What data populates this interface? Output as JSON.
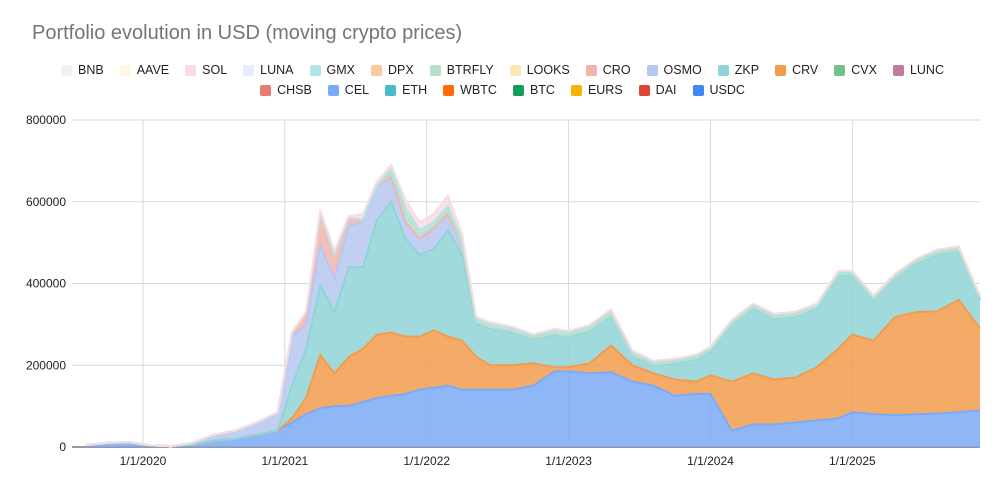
{
  "chart_data": {
    "type": "area",
    "stacked": true,
    "title": "Portfolio evolution in USD (moving crypto prices)",
    "legend_position": "top",
    "grid": true,
    "x_ticks": [
      "1/1/2020",
      "1/1/2021",
      "1/1/2022",
      "1/1/2023",
      "1/1/2024",
      "1/1/2025"
    ],
    "y_ticks": [
      0,
      200000,
      400000,
      600000,
      800000
    ],
    "ylim": [
      0,
      800000
    ],
    "xlim": [
      2019.5,
      2025.9
    ],
    "x": [
      2019.6,
      2019.75,
      2019.9,
      2020.05,
      2020.2,
      2020.35,
      2020.5,
      2020.65,
      2020.8,
      2020.95,
      2021.05,
      2021.15,
      2021.25,
      2021.35,
      2021.45,
      2021.55,
      2021.65,
      2021.75,
      2021.85,
      2021.95,
      2022.05,
      2022.15,
      2022.25,
      2022.35,
      2022.45,
      2022.6,
      2022.75,
      2022.9,
      2023.0,
      2023.15,
      2023.3,
      2023.45,
      2023.6,
      2023.75,
      2023.9,
      2024.0,
      2024.15,
      2024.3,
      2024.45,
      2024.6,
      2024.75,
      2024.9,
      2025.0,
      2025.15,
      2025.3,
      2025.45,
      2025.6,
      2025.75,
      2025.9
    ],
    "series": [
      {
        "name": "USDC",
        "color": "#4285f4",
        "values": [
          0,
          0,
          0,
          0,
          0,
          0,
          0,
          0,
          0,
          0,
          0,
          0,
          0,
          0,
          0,
          0,
          0,
          0,
          0,
          0,
          0,
          0,
          0,
          0,
          0,
          0,
          0,
          0,
          0,
          0,
          0,
          0,
          0,
          0,
          0,
          0,
          0,
          0,
          0,
          0,
          0,
          0,
          0,
          0,
          0,
          0,
          0,
          0,
          0
        ]
      },
      {
        "name": "DAI",
        "color": "#db4437",
        "values": [
          0,
          0,
          0,
          0,
          0,
          0,
          0,
          0,
          0,
          0,
          0,
          0,
          0,
          0,
          0,
          0,
          0,
          0,
          0,
          0,
          0,
          0,
          0,
          0,
          0,
          0,
          0,
          0,
          0,
          0,
          0,
          0,
          0,
          0,
          0,
          0,
          0,
          0,
          0,
          0,
          0,
          0,
          0,
          0,
          0,
          0,
          0,
          0,
          0
        ]
      },
      {
        "name": "EURS",
        "color": "#f4b400",
        "values": [
          0,
          0,
          0,
          0,
          0,
          0,
          0,
          0,
          0,
          0,
          0,
          0,
          0,
          0,
          0,
          0,
          0,
          0,
          0,
          0,
          0,
          0,
          0,
          0,
          0,
          0,
          0,
          0,
          0,
          0,
          0,
          0,
          0,
          0,
          0,
          0,
          0,
          0,
          0,
          0,
          0,
          0,
          0,
          0,
          0,
          0,
          0,
          0,
          0
        ]
      },
      {
        "name": "BTC",
        "color": "#0f9d58",
        "values": [
          0,
          0,
          0,
          0,
          0,
          0,
          0,
          0,
          0,
          0,
          0,
          0,
          0,
          0,
          0,
          0,
          0,
          0,
          0,
          0,
          0,
          0,
          0,
          0,
          0,
          0,
          0,
          0,
          0,
          0,
          0,
          0,
          0,
          0,
          0,
          0,
          0,
          0,
          0,
          0,
          0,
          0,
          0,
          0,
          0,
          0,
          0,
          0,
          0
        ]
      },
      {
        "name": "WBTC",
        "color": "#ff6d00",
        "values": [
          0,
          0,
          0,
          0,
          0,
          0,
          0,
          0,
          0,
          0,
          0,
          0,
          0,
          0,
          0,
          0,
          0,
          0,
          0,
          0,
          0,
          0,
          0,
          0,
          0,
          0,
          0,
          0,
          0,
          0,
          0,
          0,
          0,
          0,
          0,
          0,
          0,
          0,
          0,
          0,
          0,
          0,
          0,
          0,
          0,
          0,
          0,
          0,
          0
        ]
      },
      {
        "name": "ETH",
        "color": "#46bdc6",
        "values": [
          0,
          0,
          0,
          0,
          0,
          0,
          0,
          0,
          0,
          0,
          0,
          0,
          0,
          0,
          0,
          0,
          0,
          0,
          0,
          0,
          0,
          0,
          0,
          0,
          0,
          0,
          0,
          0,
          0,
          0,
          0,
          0,
          0,
          0,
          0,
          0,
          0,
          0,
          0,
          0,
          0,
          0,
          0,
          0,
          0,
          0,
          0,
          0,
          0
        ]
      },
      {
        "name": "CEL",
        "color": "#7baaf7",
        "values": [
          5000,
          10000,
          12000,
          4000,
          2000,
          5000,
          15000,
          20000,
          30000,
          40000,
          60000,
          80000,
          95000,
          100000,
          100000,
          110000,
          120000,
          125000,
          130000,
          140000,
          145000,
          150000,
          140000,
          140000,
          140000,
          140000,
          150000,
          185000,
          185000,
          180000,
          183000,
          160000,
          150000,
          125000,
          130000,
          130000,
          40000,
          55000,
          55000,
          60000,
          65000,
          70000,
          85000,
          80000,
          78000,
          80000,
          82000,
          85000,
          90000
        ]
      },
      {
        "name": "CHSB",
        "color": "#e67c73",
        "values": [
          0,
          0,
          0,
          0,
          0,
          0,
          0,
          0,
          0,
          0,
          0,
          0,
          0,
          0,
          0,
          0,
          0,
          0,
          0,
          0,
          0,
          0,
          0,
          0,
          0,
          0,
          0,
          0,
          0,
          0,
          0,
          0,
          0,
          0,
          0,
          0,
          0,
          0,
          0,
          0,
          0,
          0,
          0,
          0,
          0,
          0,
          0,
          0,
          0
        ]
      },
      {
        "name": "LUNC",
        "color": "#c27ba0",
        "values": [
          0,
          0,
          0,
          0,
          0,
          0,
          0,
          0,
          0,
          0,
          0,
          0,
          0,
          0,
          0,
          0,
          0,
          0,
          0,
          0,
          0,
          0,
          0,
          0,
          0,
          0,
          0,
          0,
          0,
          0,
          0,
          0,
          0,
          0,
          0,
          0,
          0,
          0,
          0,
          0,
          0,
          0,
          0,
          0,
          0,
          0,
          0,
          0,
          0
        ]
      },
      {
        "name": "CVX",
        "color": "#71c287",
        "values": [
          0,
          0,
          0,
          0,
          0,
          0,
          0,
          0,
          0,
          0,
          0,
          0,
          0,
          0,
          0,
          0,
          0,
          0,
          0,
          0,
          0,
          0,
          0,
          0,
          0,
          0,
          0,
          0,
          0,
          0,
          0,
          0,
          0,
          0,
          0,
          0,
          0,
          0,
          0,
          0,
          0,
          0,
          0,
          0,
          0,
          0,
          0,
          0,
          0
        ]
      },
      {
        "name": "CRV",
        "color": "#f39c4d",
        "values": [
          0,
          0,
          0,
          0,
          0,
          0,
          0,
          0,
          0,
          0,
          10000,
          40000,
          130000,
          80000,
          120000,
          130000,
          155000,
          155000,
          140000,
          130000,
          140000,
          120000,
          120000,
          80000,
          60000,
          60000,
          55000,
          10000,
          10000,
          25000,
          65000,
          40000,
          30000,
          40000,
          30000,
          45000,
          120000,
          125000,
          110000,
          110000,
          130000,
          170000,
          190000,
          180000,
          240000,
          250000,
          250000,
          275000,
          200000
        ]
      },
      {
        "name": "ZKP",
        "color": "#8fd4d6",
        "values": [
          0,
          0,
          0,
          0,
          0,
          0,
          0,
          0,
          0,
          0,
          80000,
          120000,
          170000,
          150000,
          220000,
          200000,
          280000,
          320000,
          240000,
          200000,
          200000,
          260000,
          210000,
          80000,
          90000,
          80000,
          60000,
          80000,
          75000,
          80000,
          75000,
          25000,
          20000,
          40000,
          55000,
          60000,
          140000,
          160000,
          150000,
          150000,
          145000,
          180000,
          145000,
          100000,
          95000,
          120000,
          140000,
          120000,
          70000
        ]
      },
      {
        "name": "OSMO",
        "color": "#b6c8f0",
        "values": [
          0,
          0,
          0,
          0,
          0,
          5000,
          15000,
          20000,
          30000,
          45000,
          120000,
          60000,
          100000,
          80000,
          100000,
          110000,
          85000,
          60000,
          40000,
          40000,
          50000,
          40000,
          20000,
          5000,
          3000,
          3000,
          2000,
          2000,
          2000,
          2000,
          2000,
          2000,
          2000,
          2000,
          2000,
          2000,
          2000,
          2000,
          2000,
          2000,
          2000,
          2000,
          2000,
          2000,
          2000,
          2000,
          2000,
          2000,
          2000
        ]
      },
      {
        "name": "CRO",
        "color": "#f4b3ad",
        "values": [
          0,
          0,
          0,
          0,
          0,
          0,
          0,
          0,
          0,
          0,
          10000,
          30000,
          75000,
          60000,
          20000,
          5000,
          0,
          0,
          0,
          0,
          0,
          0,
          0,
          0,
          0,
          0,
          0,
          0,
          0,
          0,
          0,
          0,
          0,
          0,
          0,
          0,
          0,
          0,
          0,
          0,
          0,
          0,
          0,
          0,
          0,
          0,
          0,
          0,
          0
        ]
      },
      {
        "name": "LOOKS",
        "color": "#fce8b2",
        "values": [
          0,
          0,
          0,
          0,
          0,
          0,
          0,
          0,
          0,
          0,
          0,
          0,
          0,
          0,
          0,
          0,
          0,
          0,
          0,
          0,
          0,
          0,
          0,
          0,
          0,
          0,
          0,
          0,
          0,
          0,
          0,
          0,
          0,
          0,
          0,
          0,
          0,
          0,
          0,
          0,
          0,
          0,
          0,
          0,
          0,
          0,
          0,
          0,
          0
        ]
      },
      {
        "name": "BTRFLY",
        "color": "#b7e1cd",
        "values": [
          0,
          0,
          0,
          0,
          0,
          0,
          0,
          0,
          0,
          0,
          0,
          0,
          0,
          0,
          0,
          0,
          0,
          10000,
          20000,
          10000,
          5000,
          10000,
          5000,
          0,
          0,
          0,
          0,
          0,
          0,
          0,
          0,
          0,
          0,
          0,
          0,
          0,
          0,
          0,
          0,
          0,
          0,
          0,
          0,
          0,
          0,
          0,
          0,
          0,
          0
        ]
      },
      {
        "name": "DPX",
        "color": "#f9cb9c",
        "values": [
          0,
          0,
          0,
          0,
          0,
          0,
          0,
          0,
          0,
          0,
          0,
          0,
          0,
          0,
          0,
          0,
          0,
          0,
          0,
          0,
          0,
          0,
          0,
          0,
          0,
          0,
          0,
          0,
          0,
          0,
          0,
          0,
          0,
          0,
          0,
          0,
          0,
          0,
          0,
          0,
          0,
          0,
          0,
          0,
          0,
          0,
          0,
          0,
          0
        ]
      },
      {
        "name": "GMX",
        "color": "#b3e3e6",
        "values": [
          0,
          0,
          0,
          0,
          0,
          0,
          0,
          0,
          0,
          0,
          0,
          0,
          0,
          0,
          0,
          0,
          0,
          10000,
          15000,
          10000,
          10000,
          10000,
          10000,
          8000,
          8000,
          8000,
          5000,
          8000,
          8000,
          8000,
          8000,
          5000,
          5000,
          5000,
          5000,
          5000,
          5000,
          5000,
          5000,
          5000,
          5000,
          5000,
          5000,
          5000,
          5000,
          5000,
          5000,
          5000,
          5000
        ]
      },
      {
        "name": "LUNA",
        "color": "#e8edfb",
        "values": [
          0,
          0,
          0,
          0,
          0,
          0,
          0,
          0,
          0,
          0,
          0,
          0,
          0,
          0,
          0,
          0,
          0,
          0,
          0,
          0,
          0,
          0,
          0,
          0,
          0,
          0,
          0,
          0,
          0,
          0,
          0,
          0,
          0,
          0,
          0,
          0,
          0,
          0,
          0,
          0,
          0,
          0,
          0,
          0,
          0,
          0,
          0,
          0,
          0
        ]
      },
      {
        "name": "SOL",
        "color": "#f9dcdf",
        "values": [
          0,
          0,
          0,
          0,
          0,
          0,
          0,
          0,
          0,
          0,
          0,
          0,
          10000,
          10000,
          5000,
          15000,
          10000,
          10000,
          20000,
          20000,
          20000,
          25000,
          15000,
          5000,
          4000,
          4000,
          4000,
          4000,
          4000,
          4000,
          4000,
          4000,
          4000,
          4000,
          4000,
          4000,
          4000,
          4000,
          4000,
          4000,
          4000,
          4000,
          4000,
          4000,
          4000,
          4000,
          4000,
          4000,
          4000
        ]
      },
      {
        "name": "AAVE",
        "color": "#fcf8e3",
        "values": [
          0,
          0,
          0,
          0,
          0,
          0,
          0,
          0,
          0,
          0,
          0,
          0,
          0,
          0,
          0,
          0,
          0,
          0,
          0,
          0,
          0,
          0,
          0,
          0,
          0,
          0,
          0,
          0,
          0,
          0,
          0,
          0,
          0,
          0,
          0,
          0,
          0,
          0,
          0,
          0,
          0,
          0,
          0,
          0,
          0,
          0,
          0,
          0,
          0
        ]
      },
      {
        "name": "BNB",
        "color": "#eef3ec",
        "values": [
          0,
          0,
          0,
          0,
          0,
          0,
          0,
          0,
          0,
          0,
          0,
          0,
          0,
          0,
          0,
          0,
          0,
          0,
          0,
          0,
          0,
          0,
          0,
          0,
          0,
          0,
          0,
          0,
          0,
          0,
          0,
          0,
          0,
          0,
          0,
          0,
          0,
          0,
          0,
          0,
          0,
          0,
          0,
          0,
          0,
          0,
          0,
          0,
          0
        ]
      }
    ],
    "legend_rows": [
      [
        "BNB",
        "AAVE",
        "SOL",
        "LUNA",
        "GMX",
        "DPX",
        "BTRFLY",
        "LOOKS",
        "CRO",
        "OSMO",
        "ZKP",
        "CRV",
        "CVX",
        "LUNC"
      ],
      [
        "CHSB",
        "CEL",
        "ETH",
        "WBTC",
        "BTC",
        "EURS",
        "DAI",
        "USDC"
      ]
    ]
  }
}
